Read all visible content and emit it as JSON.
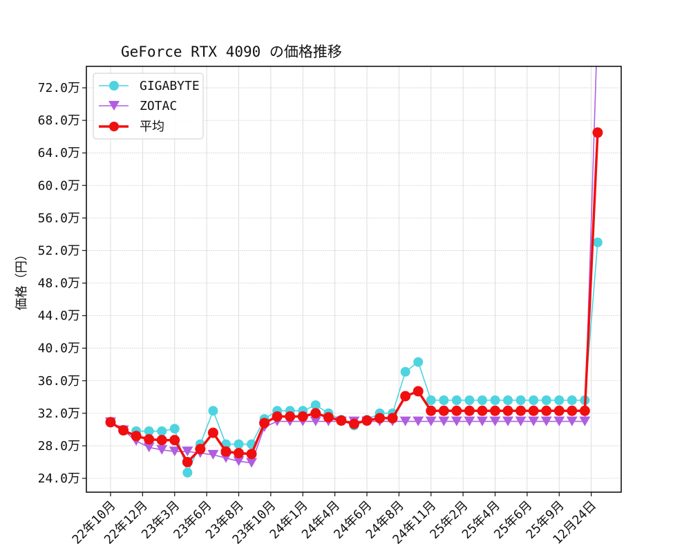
{
  "chart_data": {
    "type": "line",
    "title": "GeForce RTX 4090 の価格推移",
    "xlabel": "",
    "ylabel": "価格（円）",
    "ylim": [
      22.3,
      74.6
    ],
    "y_unit": "万",
    "yticks": [
      24.0,
      28.0,
      32.0,
      36.0,
      40.0,
      44.0,
      48.0,
      52.0,
      56.0,
      60.0,
      64.0,
      68.0,
      72.0
    ],
    "ytick_labels": [
      "24.0万",
      "28.0万",
      "32.0万",
      "36.0万",
      "40.0万",
      "44.0万",
      "48.0万",
      "52.0万",
      "56.0万",
      "60.0万",
      "64.0万",
      "68.0万",
      "72.0万"
    ],
    "xtick_labels": [
      "22年10月",
      "22年12月",
      "23年3月",
      "23年6月",
      "23年8月",
      "23年10月",
      "24年1月",
      "24年4月",
      "24年6月",
      "24年8月",
      "24年11月",
      "25年2月",
      "25年4月",
      "25年6月",
      "25年9月",
      "12月24日"
    ],
    "xtick_positions": [
      0,
      2.5,
      5,
      7.5,
      10,
      12.5,
      15,
      17.5,
      20,
      22.5,
      25,
      27.5,
      30,
      32.5,
      35,
      37.5
    ],
    "x": [
      0,
      1,
      2,
      3,
      4,
      5,
      6,
      7,
      8,
      9,
      10,
      11,
      12,
      13,
      14,
      15,
      16,
      17,
      18,
      19,
      20,
      21,
      22,
      23,
      24,
      25,
      26,
      27,
      28,
      29,
      30,
      31,
      32,
      33,
      34,
      35,
      36,
      37,
      38
    ],
    "grid": true,
    "legend_position": "upper left",
    "series": [
      {
        "name": "GIGABYTE",
        "color": "#4dd4e0",
        "marker": "circle",
        "values": [
          null,
          null,
          29.8,
          29.8,
          29.8,
          30.1,
          24.7,
          28.2,
          32.3,
          28.2,
          28.2,
          28.2,
          31.3,
          32.3,
          32.3,
          32.3,
          33.0,
          32.0,
          31.2,
          30.5,
          31.2,
          32.0,
          32.0,
          37.1,
          38.3,
          33.6,
          33.6,
          33.6,
          33.6,
          33.6,
          33.6,
          33.6,
          33.6,
          33.6,
          33.6,
          33.6,
          33.6,
          33.6,
          53.0
        ]
      },
      {
        "name": "ZOTAC",
        "color": "#b05ee0",
        "marker": "triangle-down",
        "values": [
          30.9,
          29.9,
          28.6,
          27.8,
          27.5,
          27.3,
          27.3,
          27.1,
          26.9,
          26.5,
          26.1,
          25.9,
          30.3,
          31.0,
          31.0,
          31.0,
          31.0,
          31.0,
          31.0,
          31.0,
          31.0,
          31.0,
          31.0,
          31.0,
          31.0,
          31.0,
          31.0,
          31.0,
          31.0,
          31.0,
          31.0,
          31.0,
          31.0,
          31.0,
          31.0,
          31.0,
          31.0,
          31.0,
          80.0
        ]
      },
      {
        "name": "平均",
        "color": "#f00f0f",
        "marker": "circle",
        "values": [
          30.9,
          29.9,
          29.2,
          28.8,
          28.7,
          28.7,
          26.0,
          27.6,
          29.6,
          27.3,
          27.1,
          27.0,
          30.8,
          31.6,
          31.6,
          31.6,
          32.0,
          31.5,
          31.1,
          30.7,
          31.1,
          31.4,
          31.4,
          34.1,
          34.7,
          32.3,
          32.3,
          32.3,
          32.3,
          32.3,
          32.3,
          32.3,
          32.3,
          32.3,
          32.3,
          32.3,
          32.3,
          32.3,
          66.5
        ]
      }
    ]
  }
}
